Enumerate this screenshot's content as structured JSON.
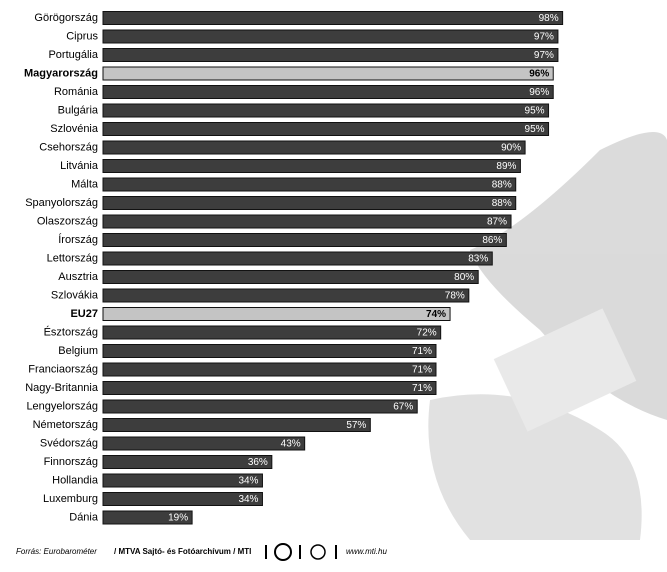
{
  "chart_data": {
    "type": "bar",
    "orientation": "horizontal",
    "categories": [
      "Görögország",
      "Ciprus",
      "Portugália",
      "Magyarország",
      "Románia",
      "Bulgária",
      "Szlovénia",
      "Csehország",
      "Litvánia",
      "Málta",
      "Spanyolország",
      "Olaszország",
      "Írország",
      "Lettország",
      "Ausztria",
      "Szlovákia",
      "EU27",
      "Észtország",
      "Belgium",
      "Franciaország",
      "Nagy-Britannia",
      "Lengyelország",
      "Németország",
      "Svédország",
      "Finnország",
      "Hollandia",
      "Luxemburg",
      "Dánia"
    ],
    "values": [
      98,
      97,
      97,
      96,
      96,
      95,
      95,
      90,
      89,
      88,
      88,
      87,
      86,
      83,
      80,
      78,
      74,
      72,
      71,
      71,
      71,
      67,
      57,
      43,
      36,
      34,
      34,
      19
    ],
    "value_labels": [
      "98%",
      "97%",
      "97%",
      "96%",
      "96%",
      "95%",
      "95%",
      "90%",
      "89%",
      "88%",
      "88%",
      "87%",
      "86%",
      "83%",
      "80%",
      "78%",
      "74%",
      "72%",
      "71%",
      "71%",
      "71%",
      "67%",
      "57%",
      "43%",
      "36%",
      "34%",
      "34%",
      "19%"
    ],
    "color": "#3d3d3d",
    "highlight_color": "#c4c4c4",
    "highlighted": [
      3,
      16
    ]
  },
  "source": {
    "prefix": "Forrás: Eurobarométer",
    "agency": "/ MTVA Sajtó- és Fotóarchívum / MTI",
    "url": "www.mti.hu"
  }
}
